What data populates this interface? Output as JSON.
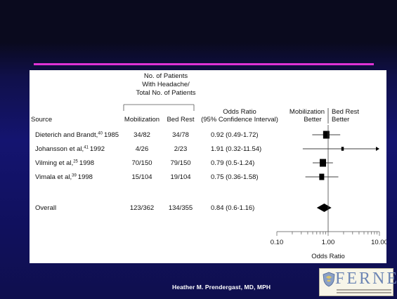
{
  "footer": {
    "author": "Heather M. Prendergast, MD, MPH"
  },
  "logo": {
    "text": "FERNE"
  },
  "table": {
    "group_header": [
      "No. of Patients",
      "With Headache/",
      "Total No. of Patients"
    ],
    "columns": {
      "source": "Source",
      "mobilization": "Mobilization",
      "bed_rest": "Bed Rest",
      "or_title": "Odds Ratio",
      "or_sub": "(95% Confidence Interval)",
      "favors_left": [
        "Mobilization",
        "Better"
      ],
      "favors_right": [
        "Bed Rest",
        "Better"
      ]
    },
    "rows": [
      {
        "source": "Dieterich and Brandt,",
        "ref": "40",
        "year": "1985",
        "mobilization": "34/82",
        "bed_rest": "34/78",
        "or_text": "0.92 (0.49-1.72)"
      },
      {
        "source": "Johansson et al,",
        "ref": "41",
        "year": "1992",
        "mobilization": "4/26",
        "bed_rest": "2/23",
        "or_text": "1.91 (0.32-11.54)"
      },
      {
        "source": "Vilming et al,",
        "ref": "25",
        "year": "1998",
        "mobilization": "70/150",
        "bed_rest": "79/150",
        "or_text": "0.79 (0.5-1.24)"
      },
      {
        "source": "Vimala et al,",
        "ref": "39",
        "year": "1998",
        "mobilization": "15/104",
        "bed_rest": "19/104",
        "or_text": "0.75 (0.36-1.58)"
      }
    ],
    "overall": {
      "source": "Overall",
      "mobilization": "123/362",
      "bed_rest": "134/355",
      "or_text": "0.84 (0.6-1.16)"
    }
  },
  "chart_data": {
    "type": "forest",
    "scale": "log",
    "xlim": [
      0.1,
      10
    ],
    "ticks": [
      "0.10",
      "1.00",
      "10.00"
    ],
    "xlabel": "Odds Ratio",
    "studies": [
      {
        "label": "Dieterich and Brandt, 1985",
        "or": 0.92,
        "ci": [
          0.49,
          1.72
        ],
        "weight": "large"
      },
      {
        "label": "Johansson et al, 1992",
        "or": 1.91,
        "ci": [
          0.32,
          11.54
        ],
        "weight": "small"
      },
      {
        "label": "Vilming et al, 1998",
        "or": 0.79,
        "ci": [
          0.5,
          1.24
        ],
        "weight": "large"
      },
      {
        "label": "Vimala et al, 1998",
        "or": 0.75,
        "ci": [
          0.36,
          1.58
        ],
        "weight": "medium"
      }
    ],
    "overall": {
      "label": "Overall",
      "or": 0.84,
      "ci": [
        0.6,
        1.16
      ]
    },
    "colors": {
      "marks": "#000000",
      "divider": "#e033d6"
    }
  }
}
